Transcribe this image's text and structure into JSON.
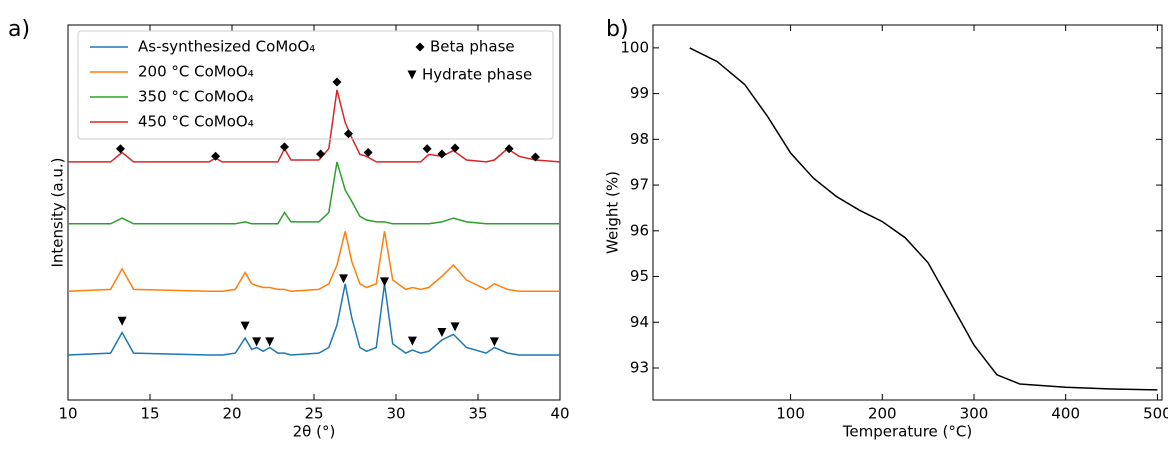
{
  "chart_data": [
    {
      "type": "line",
      "panel_label": "a)",
      "xlabel": "2θ (°)",
      "ylabel": "Intensity (a.u.)",
      "xlim": [
        10,
        40
      ],
      "xticks": [
        10,
        15,
        20,
        25,
        30,
        35,
        40
      ],
      "ylim": [
        0,
        100
      ],
      "x": [
        10,
        12.6,
        13.3,
        14,
        18.6,
        19,
        19.4,
        20.2,
        20.8,
        21.2,
        21.5,
        21.9,
        22.3,
        22.8,
        23.2,
        23.6,
        25.3,
        25.9,
        26.4,
        26.9,
        27.3,
        27.8,
        28.2,
        28.8,
        29.3,
        29.8,
        30.6,
        31,
        31.5,
        32,
        32.8,
        33.5,
        34.3,
        35.5,
        36,
        36.8,
        37.5,
        38.5,
        40
      ],
      "series": [
        {
          "name": "As-synthesized CoMoO₄",
          "color": "#1f77b4",
          "values": [
            12,
            12.5,
            18,
            12.5,
            12,
            12,
            12,
            12.5,
            16.5,
            13.5,
            14,
            13,
            14,
            12.5,
            12.5,
            12,
            12.5,
            14,
            20,
            31,
            22,
            14,
            13,
            14,
            31,
            15,
            12.5,
            13.3,
            12.5,
            13,
            16,
            17.5,
            14,
            12.5,
            14,
            12.5,
            12,
            12,
            12
          ]
        },
        {
          "name": "200 °C CoMoO₄",
          "color": "#ff7f0e",
          "values": [
            29,
            29.5,
            35,
            29.5,
            29,
            29,
            29,
            29.5,
            34,
            31,
            30.5,
            30,
            30,
            29.5,
            29.5,
            29,
            29.5,
            31,
            36,
            45,
            37,
            31,
            30,
            31,
            45,
            32,
            29.5,
            30,
            29.5,
            30,
            33,
            36,
            32,
            29.5,
            31,
            29.5,
            29,
            29,
            29
          ]
        },
        {
          "name": "350 °C CoMoO₄",
          "color": "#2ca02c",
          "values": [
            47,
            47,
            48.5,
            47,
            47,
            47,
            47,
            47,
            47.5,
            47,
            47,
            47,
            47,
            47,
            50,
            47.5,
            47.5,
            50,
            63.5,
            56,
            53,
            49,
            48,
            47.5,
            47.5,
            47,
            47,
            47,
            47,
            47,
            47.5,
            48.5,
            47.5,
            47,
            47,
            47,
            47,
            47,
            47
          ]
        },
        {
          "name": "450 °C CoMoO₄",
          "color": "#d62728",
          "values": [
            63.5,
            63.5,
            66,
            63.5,
            63.5,
            64.5,
            63.5,
            63.5,
            63.5,
            63.5,
            63.5,
            63.5,
            63.5,
            63.5,
            67,
            64,
            64,
            67,
            82.7,
            74,
            70,
            65.5,
            65,
            63.5,
            63.5,
            63.5,
            63.5,
            63.5,
            63.5,
            65.5,
            65,
            66.5,
            64,
            63.5,
            64,
            67,
            65,
            64,
            63.5
          ]
        }
      ],
      "marker_series": [
        {
          "name": "Beta phase",
          "marker": "diamond",
          "color": "#000000",
          "x": [
            13.2,
            19,
            23.2,
            25.4,
            26.4,
            27.1,
            28.3,
            31.9,
            32.8,
            33.6,
            36.9,
            38.5
          ],
          "y": [
            67,
            65,
            67.5,
            65.6,
            84.8,
            71,
            66,
            67,
            65.6,
            67.2,
            67,
            64.8
          ]
        },
        {
          "name": "Hydrate phase",
          "marker": "triangle",
          "color": "#000000",
          "x": [
            13.3,
            20.8,
            21.5,
            22.3,
            26.8,
            29.3,
            31,
            32.8,
            33.6,
            36
          ],
          "y": [
            21,
            19.7,
            15.5,
            15.5,
            32.3,
            31.5,
            15.7,
            18,
            19.5,
            15.5
          ]
        }
      ]
    },
    {
      "type": "line",
      "panel_label": "b)",
      "xlabel": "Temperature (°C)",
      "ylabel": "Weight (%)",
      "xlim": [
        -50,
        505
      ],
      "xticks": [
        100,
        200,
        300,
        400,
        500
      ],
      "ylim": [
        92.3,
        100.5
      ],
      "yticks": [
        93,
        94,
        95,
        96,
        97,
        98,
        99,
        100
      ],
      "color": "#000000",
      "x": [
        -10,
        20,
        50,
        75,
        100,
        125,
        150,
        175,
        200,
        225,
        250,
        275,
        300,
        325,
        350,
        400,
        450,
        500
      ],
      "values": [
        100,
        99.7,
        99.2,
        98.5,
        97.7,
        97.15,
        96.75,
        96.45,
        96.2,
        95.85,
        95.3,
        94.4,
        93.5,
        92.85,
        92.65,
        92.58,
        92.54,
        92.52
      ]
    }
  ]
}
